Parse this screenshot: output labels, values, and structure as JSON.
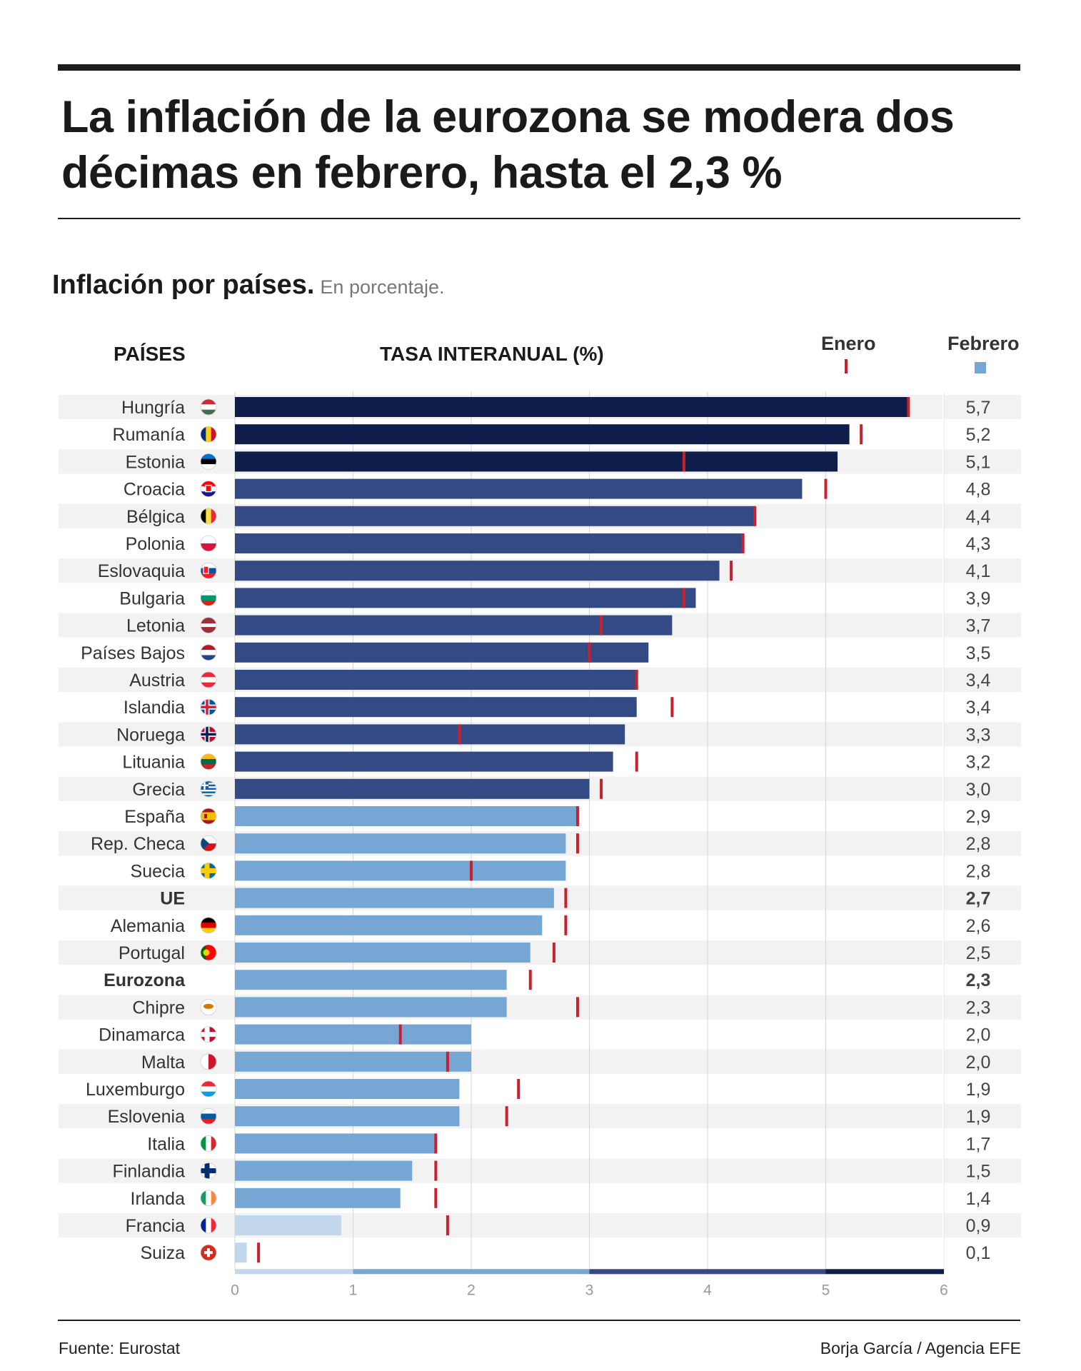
{
  "headline": "La inflación de la eurozona se modera dos décimas en febrero, hasta el 2,3 %",
  "subtitle": "Inflación por países.",
  "subtitle_unit": "En porcentaje.",
  "column_headers": {
    "countries": "PAÍSES",
    "rate": "TASA INTERANUAL (%)"
  },
  "legend": {
    "january": "Enero",
    "february": "Febrero",
    "january_color": "#c8202f",
    "february_color": "#76a6d4"
  },
  "footer": {
    "source": "Fuente: Eurostat",
    "credit": "Borja García / Agencia EFE"
  },
  "colors": {
    "very_high": "#0e1d49",
    "high": "#344a85",
    "medium": "#76a6d4",
    "low": "#c3d7ec",
    "january_marker": "#c8202f",
    "row_stripe": "#f2f2f2"
  },
  "chart_data": {
    "type": "bar",
    "orientation": "horizontal",
    "xlim": [
      0,
      6
    ],
    "x_ticks": [
      "0",
      "1",
      "2",
      "3",
      "4",
      "5",
      "6"
    ],
    "grid": true,
    "color_scale": [
      {
        "from": 0,
        "to": 1,
        "color": "#c3d7ec"
      },
      {
        "from": 1,
        "to": 3,
        "color": "#76a6d4"
      },
      {
        "from": 3,
        "to": 5,
        "color": "#344a85"
      },
      {
        "from": 5,
        "to": 6,
        "color": "#0e1d49"
      }
    ],
    "rows": [
      {
        "country": "Hungría",
        "flag": "hungary-flag-icon",
        "february": 5.7,
        "january": 5.7,
        "label": "5,7",
        "bold": false
      },
      {
        "country": "Rumanía",
        "flag": "romania-flag-icon",
        "february": 5.2,
        "january": 5.3,
        "label": "5,2",
        "bold": false
      },
      {
        "country": "Estonia",
        "flag": "estonia-flag-icon",
        "february": 5.1,
        "january": 3.8,
        "label": "5,1",
        "bold": false
      },
      {
        "country": "Croacia",
        "flag": "croatia-flag-icon",
        "february": 4.8,
        "january": 5.0,
        "label": "4,8",
        "bold": false
      },
      {
        "country": "Bélgica",
        "flag": "belgium-flag-icon",
        "february": 4.4,
        "january": 4.4,
        "label": "4,4",
        "bold": false
      },
      {
        "country": "Polonia",
        "flag": "poland-flag-icon",
        "february": 4.3,
        "january": 4.3,
        "label": "4,3",
        "bold": false
      },
      {
        "country": "Eslovaquia",
        "flag": "slovakia-flag-icon",
        "february": 4.1,
        "january": 4.2,
        "label": "4,1",
        "bold": false
      },
      {
        "country": "Bulgaria",
        "flag": "bulgaria-flag-icon",
        "february": 3.9,
        "january": 3.8,
        "label": "3,9",
        "bold": false
      },
      {
        "country": "Letonia",
        "flag": "latvia-flag-icon",
        "february": 3.7,
        "january": 3.1,
        "label": "3,7",
        "bold": false
      },
      {
        "country": "Países Bajos",
        "flag": "netherlands-flag-icon",
        "february": 3.5,
        "january": 3.0,
        "label": "3,5",
        "bold": false
      },
      {
        "country": "Austria",
        "flag": "austria-flag-icon",
        "february": 3.4,
        "january": 3.4,
        "label": "3,4",
        "bold": false
      },
      {
        "country": "Islandia",
        "flag": "iceland-flag-icon",
        "february": 3.4,
        "january": 3.7,
        "label": "3,4",
        "bold": false
      },
      {
        "country": "Noruega",
        "flag": "norway-flag-icon",
        "february": 3.3,
        "january": 1.9,
        "label": "3,3",
        "bold": false
      },
      {
        "country": "Lituania",
        "flag": "lithuania-flag-icon",
        "february": 3.2,
        "january": 3.4,
        "label": "3,2",
        "bold": false
      },
      {
        "country": "Grecia",
        "flag": "greece-flag-icon",
        "february": 3.0,
        "january": 3.1,
        "label": "3,0",
        "bold": false
      },
      {
        "country": "España",
        "flag": "spain-flag-icon",
        "february": 2.9,
        "january": 2.9,
        "label": "2,9",
        "bold": false
      },
      {
        "country": "Rep. Checa",
        "flag": "czech-flag-icon",
        "february": 2.8,
        "january": 2.9,
        "label": "2,8",
        "bold": false
      },
      {
        "country": "Suecia",
        "flag": "sweden-flag-icon",
        "february": 2.8,
        "january": 2.0,
        "label": "2,8",
        "bold": false
      },
      {
        "country": "UE",
        "flag": "",
        "february": 2.7,
        "january": 2.8,
        "label": "2,7",
        "bold": true
      },
      {
        "country": "Alemania",
        "flag": "germany-flag-icon",
        "february": 2.6,
        "january": 2.8,
        "label": "2,6",
        "bold": false
      },
      {
        "country": "Portugal",
        "flag": "portugal-flag-icon",
        "february": 2.5,
        "january": 2.7,
        "label": "2,5",
        "bold": false
      },
      {
        "country": "Eurozona",
        "flag": "",
        "february": 2.3,
        "january": 2.5,
        "label": "2,3",
        "bold": true
      },
      {
        "country": "Chipre",
        "flag": "cyprus-flag-icon",
        "february": 2.3,
        "january": 2.9,
        "label": "2,3",
        "bold": false
      },
      {
        "country": "Dinamarca",
        "flag": "denmark-flag-icon",
        "february": 2.0,
        "january": 1.4,
        "label": "2,0",
        "bold": false
      },
      {
        "country": "Malta",
        "flag": "malta-flag-icon",
        "february": 2.0,
        "january": 1.8,
        "label": "2,0",
        "bold": false
      },
      {
        "country": "Luxemburgo",
        "flag": "luxembourg-flag-icon",
        "february": 1.9,
        "january": 2.4,
        "label": "1,9",
        "bold": false
      },
      {
        "country": "Eslovenia",
        "flag": "slovenia-flag-icon",
        "february": 1.9,
        "january": 2.3,
        "label": "1,9",
        "bold": false
      },
      {
        "country": "Italia",
        "flag": "italy-flag-icon",
        "february": 1.7,
        "january": 1.7,
        "label": "1,7",
        "bold": false
      },
      {
        "country": "Finlandia",
        "flag": "finland-flag-icon",
        "february": 1.5,
        "january": 1.7,
        "label": "1,5",
        "bold": false
      },
      {
        "country": "Irlanda",
        "flag": "ireland-flag-icon",
        "february": 1.4,
        "january": 1.7,
        "label": "1,4",
        "bold": false
      },
      {
        "country": "Francia",
        "flag": "france-flag-icon",
        "february": 0.9,
        "january": 1.8,
        "label": "0,9",
        "bold": false
      },
      {
        "country": "Suiza",
        "flag": "switzerland-flag-icon",
        "february": 0.1,
        "january": 0.2,
        "label": "0,1",
        "bold": false
      }
    ]
  }
}
